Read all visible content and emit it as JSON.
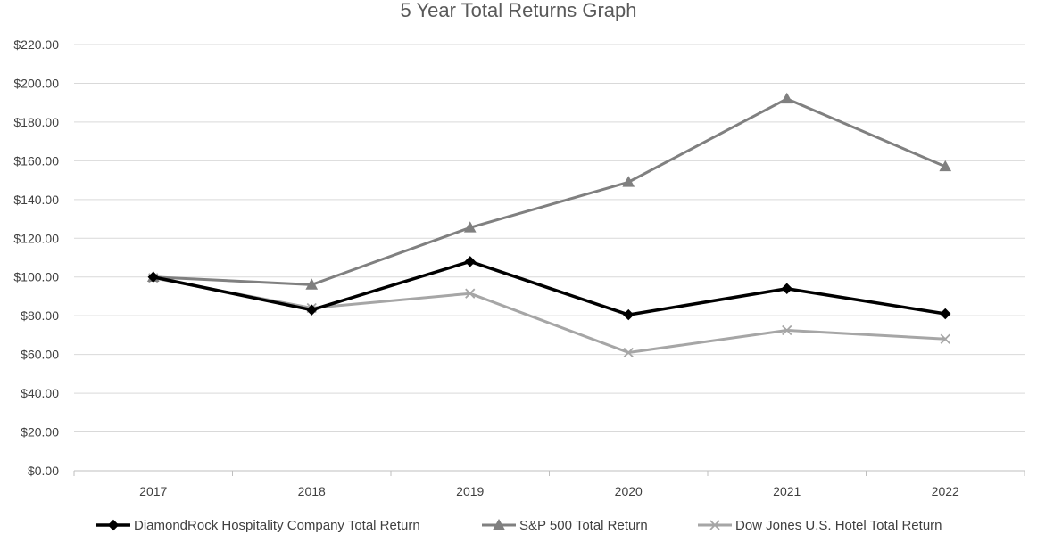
{
  "chart_data": {
    "type": "line",
    "title": "5 Year Total Returns Graph",
    "xlabel": "",
    "ylabel": "",
    "categories": [
      "2017",
      "2018",
      "2019",
      "2020",
      "2021",
      "2022"
    ],
    "ylim": [
      0,
      220
    ],
    "yticks": [
      0,
      20,
      40,
      60,
      80,
      100,
      120,
      140,
      160,
      180,
      200,
      220
    ],
    "ytick_labels": [
      "$0.00",
      "$20.00",
      "$40.00",
      "$60.00",
      "$80.00",
      "$100.00",
      "$120.00",
      "$140.00",
      "$160.00",
      "$180.00",
      "$200.00",
      "$220.00"
    ],
    "grid": "horizontal",
    "legend_position": "bottom",
    "series": [
      {
        "name": "DiamondRock Hospitality Company Total Return",
        "values": [
          100,
          83,
          108,
          80.5,
          94,
          81
        ],
        "color": "#000000",
        "marker": "diamond"
      },
      {
        "name": "S&P 500 Total Return",
        "values": [
          100,
          96,
          125.5,
          149,
          192,
          157
        ],
        "color": "#808080",
        "marker": "triangle"
      },
      {
        "name": "Dow Jones U.S. Hotel Total Return",
        "values": [
          99.5,
          84,
          91.5,
          61,
          72.5,
          68
        ],
        "color": "#a6a6a6",
        "marker": "x"
      }
    ]
  }
}
